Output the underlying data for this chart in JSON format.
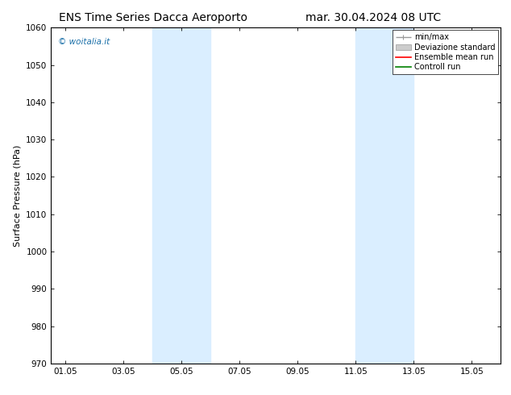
{
  "title_left": "ENS Time Series Dacca Aeroporto",
  "title_right": "mar. 30.04.2024 08 UTC",
  "ylabel": "Surface Pressure (hPa)",
  "ylim": [
    970,
    1060
  ],
  "yticks": [
    970,
    980,
    990,
    1000,
    1010,
    1020,
    1030,
    1040,
    1050,
    1060
  ],
  "xtick_labels": [
    "01.05",
    "03.05",
    "05.05",
    "07.05",
    "09.05",
    "11.05",
    "13.05",
    "15.05"
  ],
  "xtick_positions": [
    1,
    3,
    5,
    7,
    9,
    11,
    13,
    15
  ],
  "xlim": [
    0.5,
    16.0
  ],
  "shaded_regions": [
    {
      "xmin": 4.0,
      "xmax": 6.0,
      "color": "#daeeff"
    },
    {
      "xmin": 11.0,
      "xmax": 13.0,
      "color": "#daeeff"
    }
  ],
  "watermark": "© woitalia.it",
  "watermark_color": "#1a6fa8",
  "legend_items": [
    {
      "label": "min/max",
      "color": "#999999",
      "style": "minmax"
    },
    {
      "label": "Deviazione standard",
      "color": "#cccccc",
      "style": "band"
    },
    {
      "label": "Ensemble mean run",
      "color": "red",
      "style": "line"
    },
    {
      "label": "Controll run",
      "color": "green",
      "style": "line"
    }
  ],
  "bg_color": "#ffffff",
  "plot_bg_color": "#ffffff",
  "title_fontsize": 10,
  "tick_fontsize": 7.5,
  "ylabel_fontsize": 8,
  "legend_fontsize": 7
}
